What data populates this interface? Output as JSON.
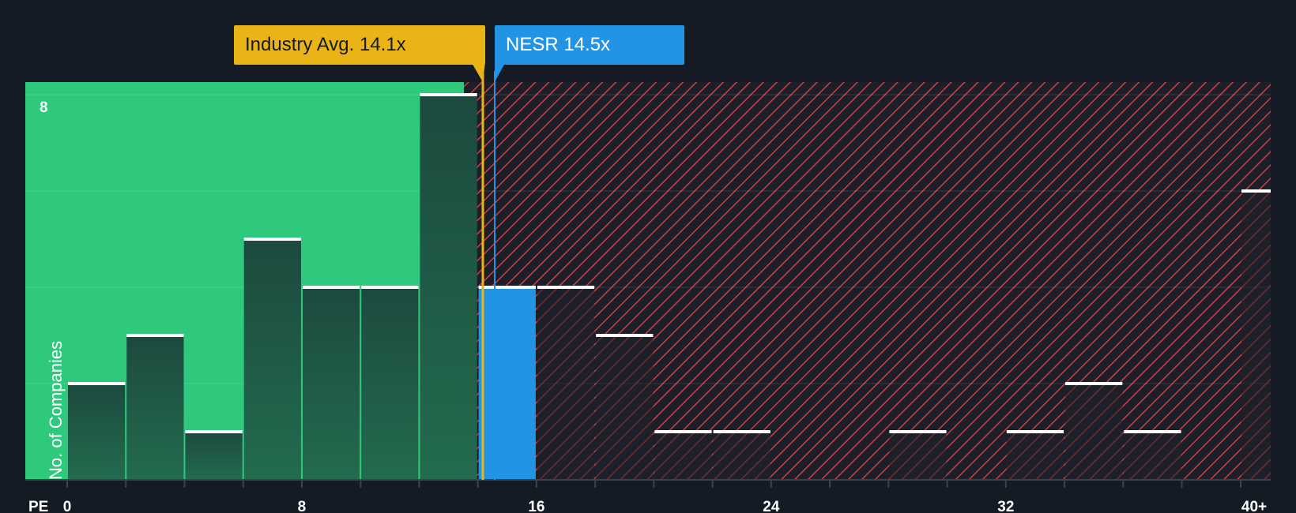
{
  "chart_data": {
    "type": "bar",
    "xlabel": "PE",
    "ylabel": "No. of Companies",
    "x_ticks": [
      "0",
      "8",
      "16",
      "24",
      "32",
      "40+"
    ],
    "x_tick_values": [
      0,
      8,
      16,
      24,
      32,
      40
    ],
    "xlim": [
      0,
      41
    ],
    "y_ticks": [
      "8"
    ],
    "y_tick_values": [
      8
    ],
    "ylim": [
      0,
      8.3
    ],
    "gridlines_y": [
      2,
      4,
      6,
      8
    ],
    "bins": [
      {
        "x0": 0,
        "x1": 2,
        "value": 2
      },
      {
        "x0": 2,
        "x1": 4,
        "value": 3
      },
      {
        "x0": 4,
        "x1": 6,
        "value": 1
      },
      {
        "x0": 6,
        "x1": 8,
        "value": 5
      },
      {
        "x0": 8,
        "x1": 10,
        "value": 4
      },
      {
        "x0": 10,
        "x1": 12,
        "value": 4
      },
      {
        "x0": 12,
        "x1": 14,
        "value": 8
      },
      {
        "x0": 14,
        "x1": 16,
        "value": 4,
        "highlight": true
      },
      {
        "x0": 16,
        "x1": 18,
        "value": 4
      },
      {
        "x0": 18,
        "x1": 20,
        "value": 3
      },
      {
        "x0": 20,
        "x1": 22,
        "value": 1
      },
      {
        "x0": 22,
        "x1": 24,
        "value": 1
      },
      {
        "x0": 26,
        "x1": 28,
        "value": 0
      },
      {
        "x0": 28,
        "x1": 30,
        "value": 1
      },
      {
        "x0": 32,
        "x1": 34,
        "value": 1
      },
      {
        "x0": 34,
        "x1": 36,
        "value": 2
      },
      {
        "x0": 36,
        "x1": 38,
        "value": 1
      },
      {
        "x0": 40,
        "x1": 41,
        "value": 6
      }
    ],
    "industry_avg": {
      "label": "Industry Avg. 14.1x",
      "value": 14.1
    },
    "company": {
      "label": "NESR 14.5x",
      "value": 14.5
    },
    "fair_zone_end": 14.1
  },
  "colors": {
    "background": "#151b24",
    "fair_zone": "#2fc97e",
    "bar_fair": "#1e4a3e",
    "bar_over": "#232631",
    "highlight_bar": "#2393e4",
    "industry": "#eab416",
    "hatch": "#d9434a",
    "cap": "#ffffff"
  }
}
